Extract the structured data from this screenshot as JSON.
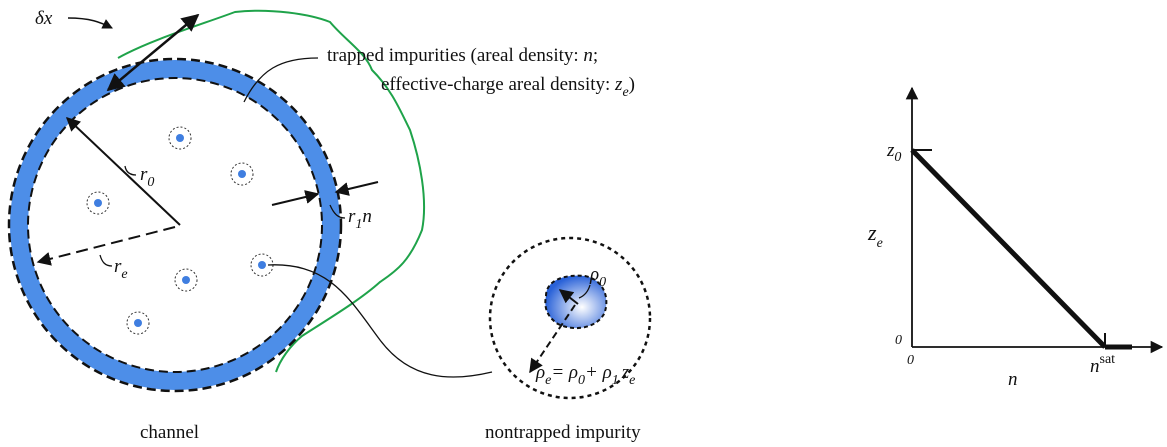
{
  "channel": {
    "delta_x": "δx",
    "trapped_line1": {
      "text": "trapped impurities (areal density: ",
      "var": "n",
      "end": ";"
    },
    "trapped_line2": {
      "text": "effective-charge areal density: ",
      "var": "z",
      "sub": "e",
      "end": ")"
    },
    "r0": {
      "text": "r",
      "sub": "0"
    },
    "re": {
      "text": "r",
      "sub": "e"
    },
    "r1n": {
      "text": "r",
      "sub": "1",
      "end": "n"
    },
    "caption": "channel"
  },
  "impurity": {
    "rho0": {
      "text": "ρ",
      "sub": "0"
    },
    "rhoe": {
      "a": "ρ",
      "a_sub": "e",
      "eq": "= ",
      "b": "ρ",
      "b_sub": "0",
      "plus": "+ ",
      "c": "ρ",
      "c_sub": "1",
      "d": "z",
      "d_sub": "e"
    },
    "caption": "nontrapped impurity"
  },
  "plot": {
    "y_label": {
      "text": "z",
      "sub": "e"
    },
    "y_tick": {
      "text": "z",
      "sub": "0"
    },
    "y_origin": "0",
    "x_origin": "0",
    "x_label": "n",
    "x_tick": {
      "text": "n",
      "sup": "sat"
    }
  }
}
